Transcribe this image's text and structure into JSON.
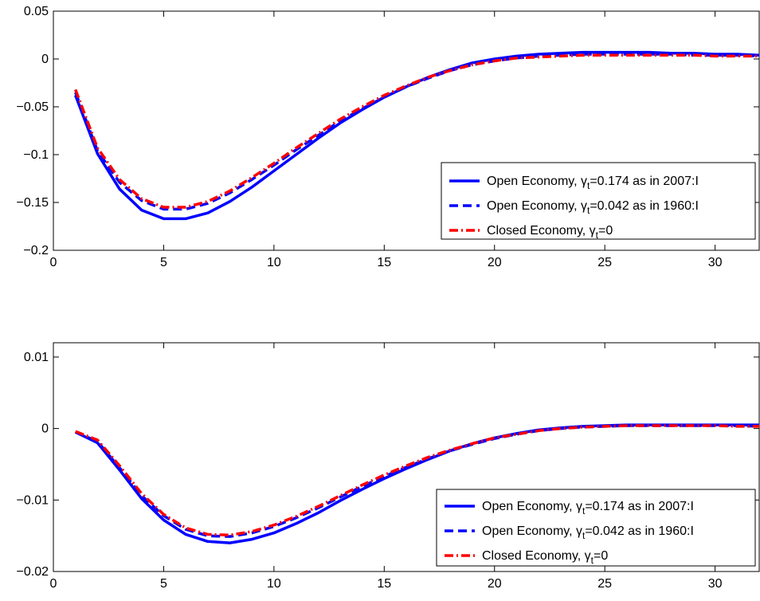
{
  "chart_data": [
    {
      "type": "line",
      "xlim": [
        0,
        32
      ],
      "ylim": [
        -0.2,
        0.05
      ],
      "xticks": [
        0,
        5,
        10,
        15,
        20,
        25,
        30
      ],
      "yticks": [
        -0.2,
        -0.15,
        -0.1,
        -0.05,
        0,
        0.05
      ],
      "xtick_labels": [
        "0",
        "5",
        "10",
        "15",
        "20",
        "25",
        "30"
      ],
      "ytick_labels": [
        "−0.2",
        "−0.15",
        "−0.1",
        "−0.05",
        "0",
        "0.05"
      ],
      "grid": false,
      "legend_position": "lower-right",
      "x": [
        1,
        2,
        3,
        4,
        5,
        6,
        7,
        8,
        9,
        10,
        11,
        12,
        13,
        14,
        15,
        16,
        17,
        18,
        19,
        20,
        21,
        22,
        23,
        24,
        25,
        26,
        27,
        28,
        29,
        30,
        31,
        32
      ],
      "series": [
        {
          "name": {
            "prefix": "Open Economy, ",
            "greek": "γ",
            "sub": "t",
            "suffix": "=0.174 as in 2007:I"
          },
          "color": "#0000FF",
          "style": "solid",
          "values": [
            -0.038,
            -0.099,
            -0.136,
            -0.158,
            -0.167,
            -0.167,
            -0.161,
            -0.149,
            -0.134,
            -0.117,
            -0.1,
            -0.083,
            -0.067,
            -0.053,
            -0.04,
            -0.029,
            -0.019,
            -0.011,
            -0.004,
            0.0,
            0.003,
            0.005,
            0.006,
            0.007,
            0.007,
            0.007,
            0.007,
            0.006,
            0.006,
            0.005,
            0.005,
            0.004
          ]
        },
        {
          "name": {
            "prefix": "Open Economy, ",
            "greek": "γ",
            "sub": "t",
            "suffix": "=0.042 as in 1960:I"
          },
          "color": "#0000FF",
          "style": "dashed",
          "values": [
            -0.035,
            -0.096,
            -0.129,
            -0.148,
            -0.157,
            -0.157,
            -0.151,
            -0.14,
            -0.126,
            -0.111,
            -0.095,
            -0.08,
            -0.065,
            -0.052,
            -0.04,
            -0.029,
            -0.02,
            -0.012,
            -0.006,
            -0.002,
            0.001,
            0.003,
            0.004,
            0.005,
            0.005,
            0.005,
            0.005,
            0.005,
            0.004,
            0.004,
            0.004,
            0.003
          ]
        },
        {
          "name": {
            "prefix": "Closed Economy, ",
            "greek": "γ",
            "sub": "t",
            "suffix": "=0"
          },
          "color": "#FF0000",
          "style": "dashdot",
          "values": [
            -0.032,
            -0.093,
            -0.126,
            -0.146,
            -0.155,
            -0.155,
            -0.149,
            -0.138,
            -0.124,
            -0.109,
            -0.093,
            -0.078,
            -0.063,
            -0.05,
            -0.038,
            -0.028,
            -0.019,
            -0.012,
            -0.006,
            -0.002,
            0.001,
            0.002,
            0.003,
            0.004,
            0.004,
            0.004,
            0.004,
            0.004,
            0.004,
            0.003,
            0.003,
            0.003
          ]
        }
      ]
    },
    {
      "type": "line",
      "xlim": [
        0,
        32
      ],
      "ylim": [
        -0.02,
        0.012
      ],
      "xticks": [
        0,
        5,
        10,
        15,
        20,
        25,
        30
      ],
      "yticks": [
        -0.02,
        -0.01,
        0,
        0.01
      ],
      "xtick_labels": [
        "0",
        "5",
        "10",
        "15",
        "20",
        "25",
        "30"
      ],
      "ytick_labels": [
        "−0.02",
        "−0.01",
        "0",
        "0.01"
      ],
      "grid": false,
      "legend_position": "lower-right",
      "x": [
        1,
        2,
        3,
        4,
        5,
        6,
        7,
        8,
        9,
        10,
        11,
        12,
        13,
        14,
        15,
        16,
        17,
        18,
        19,
        20,
        21,
        22,
        23,
        24,
        25,
        26,
        27,
        28,
        29,
        30,
        31,
        32
      ],
      "series": [
        {
          "name": {
            "prefix": "Open Economy, ",
            "greek": "γ",
            "sub": "t",
            "suffix": "=0.174 as in 2007:I"
          },
          "color": "#0000FF",
          "style": "solid",
          "values": [
            -0.0005,
            -0.002,
            -0.0058,
            -0.0098,
            -0.0128,
            -0.0148,
            -0.0158,
            -0.016,
            -0.0155,
            -0.0146,
            -0.0133,
            -0.0118,
            -0.0101,
            -0.0085,
            -0.007,
            -0.0056,
            -0.0043,
            -0.0031,
            -0.0021,
            -0.0013,
            -0.0007,
            -0.0002,
            0.0001,
            0.0003,
            0.0004,
            0.0005,
            0.0005,
            0.0005,
            0.0005,
            0.0005,
            0.0005,
            0.0005
          ]
        },
        {
          "name": {
            "prefix": "Open Economy, ",
            "greek": "γ",
            "sub": "t",
            "suffix": "=0.042 as in 1960:I"
          },
          "color": "#0000FF",
          "style": "dashed",
          "values": [
            -0.0005,
            -0.0018,
            -0.0055,
            -0.0094,
            -0.0122,
            -0.0141,
            -0.015,
            -0.0151,
            -0.0146,
            -0.0137,
            -0.0125,
            -0.0111,
            -0.0096,
            -0.0081,
            -0.0067,
            -0.0054,
            -0.0042,
            -0.0031,
            -0.0022,
            -0.0014,
            -0.0008,
            -0.0003,
            0.0,
            0.0002,
            0.0003,
            0.0004,
            0.0004,
            0.0004,
            0.0004,
            0.0004,
            0.0004,
            0.0003
          ]
        },
        {
          "name": {
            "prefix": "Closed Economy, ",
            "greek": "γ",
            "sub": "t",
            "suffix": "=0"
          },
          "color": "#FF0000",
          "style": "dashdot",
          "values": [
            -0.0004,
            -0.0016,
            -0.0052,
            -0.0091,
            -0.012,
            -0.0139,
            -0.0148,
            -0.0149,
            -0.0144,
            -0.0135,
            -0.0123,
            -0.0109,
            -0.0094,
            -0.0079,
            -0.0065,
            -0.0052,
            -0.004,
            -0.003,
            -0.0021,
            -0.0013,
            -0.0008,
            -0.0003,
            0.0,
            0.0002,
            0.0003,
            0.0004,
            0.0004,
            0.0004,
            0.0004,
            0.0004,
            0.0003,
            0.0003
          ]
        }
      ]
    }
  ]
}
